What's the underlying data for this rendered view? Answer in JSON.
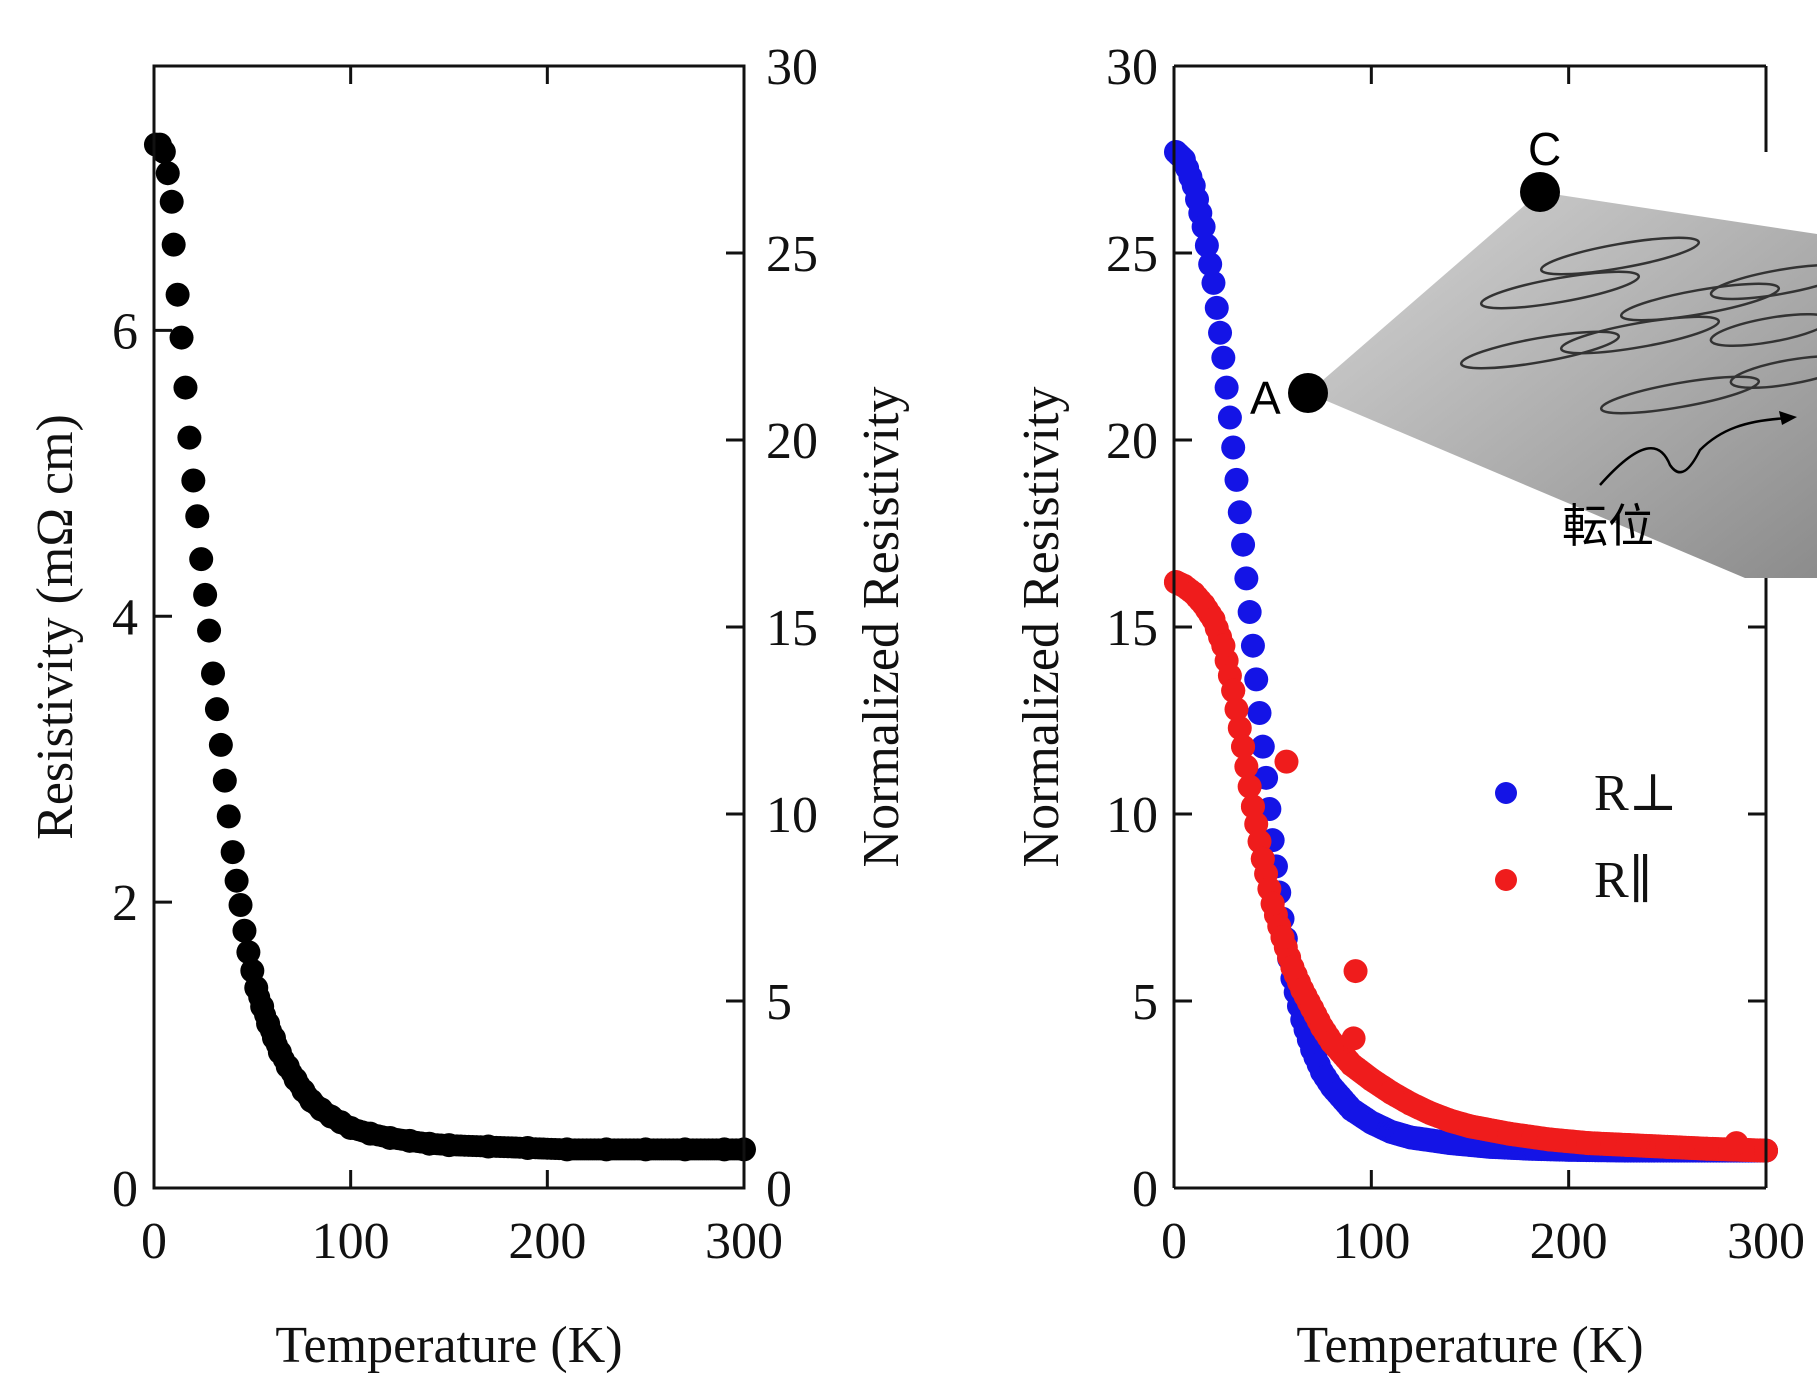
{
  "chart_data": [
    {
      "type": "scatter",
      "xlabel": "Temperature (K)",
      "ylabel": "Resistivity (mΩ cm)",
      "y2label": "Normalized Resistivity",
      "xlim": [
        0,
        300
      ],
      "ylim": [
        0,
        7.85
      ],
      "y2lim": [
        0,
        30
      ],
      "xticks": [
        "0",
        "100",
        "200",
        "300"
      ],
      "yticks": [
        "0",
        "2",
        "4",
        "6"
      ],
      "y2ticks": [
        "0",
        "5",
        "10",
        "15",
        "20",
        "25",
        "30"
      ],
      "series": [
        {
          "color": "#000000",
          "points": [
            [
              1,
              7.3
            ],
            [
              3,
              7.3
            ],
            [
              5,
              7.25
            ],
            [
              7,
              7.1
            ],
            [
              9,
              6.9
            ],
            [
              10,
              6.6
            ],
            [
              12,
              6.25
            ],
            [
              14,
              5.95
            ],
            [
              16,
              5.6
            ],
            [
              18,
              5.25
            ],
            [
              20,
              4.95
            ],
            [
              22,
              4.7
            ],
            [
              24,
              4.4
            ],
            [
              26,
              4.15
            ],
            [
              28,
              3.9
            ],
            [
              30,
              3.6
            ],
            [
              32,
              3.35
            ],
            [
              34,
              3.1
            ],
            [
              36,
              2.85
            ],
            [
              38,
              2.6
            ],
            [
              40,
              2.35
            ],
            [
              42,
              2.15
            ],
            [
              44,
              1.98
            ],
            [
              46,
              1.8
            ],
            [
              48,
              1.65
            ],
            [
              50,
              1.52
            ],
            [
              52,
              1.4
            ],
            [
              55,
              1.27
            ],
            [
              58,
              1.15
            ],
            [
              61,
              1.05
            ],
            [
              64,
              0.95
            ],
            [
              68,
              0.85
            ],
            [
              72,
              0.76
            ],
            [
              76,
              0.68
            ],
            [
              80,
              0.61
            ],
            [
              85,
              0.55
            ],
            [
              90,
              0.5
            ],
            [
              95,
              0.46
            ],
            [
              100,
              0.42
            ],
            [
              110,
              0.38
            ],
            [
              120,
              0.35
            ],
            [
              130,
              0.33
            ],
            [
              140,
              0.31
            ],
            [
              150,
              0.3
            ],
            [
              170,
              0.29
            ],
            [
              190,
              0.28
            ],
            [
              210,
              0.27
            ],
            [
              230,
              0.27
            ],
            [
              250,
              0.27
            ],
            [
              270,
              0.27
            ],
            [
              290,
              0.27
            ],
            [
              300,
              0.27
            ]
          ]
        }
      ]
    },
    {
      "type": "scatter",
      "xlabel": "Temperature (K)",
      "ylabel": "Normalized Resistivity",
      "xlim": [
        0,
        300
      ],
      "ylim": [
        0,
        30
      ],
      "xticks": [
        "0",
        "100",
        "200",
        "300"
      ],
      "yticks": [
        "0",
        "5",
        "10",
        "15",
        "20",
        "25",
        "30"
      ],
      "legend_position": "center-right",
      "series": [
        {
          "name": "R⊥",
          "color": "#1414e6",
          "points": [
            [
              1,
              27.7
            ],
            [
              5,
              27.5
            ],
            [
              10,
              26.8
            ],
            [
              15,
              25.7
            ],
            [
              20,
              24.2
            ],
            [
              25,
              22.2
            ],
            [
              30,
              19.8
            ],
            [
              35,
              17.2
            ],
            [
              40,
              14.5
            ],
            [
              45,
              11.8
            ],
            [
              50,
              9.3
            ],
            [
              55,
              7.2
            ],
            [
              60,
              5.6
            ],
            [
              65,
              4.5
            ],
            [
              70,
              3.7
            ],
            [
              75,
              3.1
            ],
            [
              80,
              2.7
            ],
            [
              90,
              2.1
            ],
            [
              100,
              1.75
            ],
            [
              110,
              1.5
            ],
            [
              120,
              1.35
            ],
            [
              140,
              1.2
            ],
            [
              160,
              1.1
            ],
            [
              180,
              1.05
            ],
            [
              200,
              1.02
            ],
            [
              230,
              1.0
            ],
            [
              260,
              1.0
            ],
            [
              300,
              1.0
            ]
          ]
        },
        {
          "name": "R∥",
          "color": "#ef1c1c",
          "points": [
            [
              1,
              16.2
            ],
            [
              5,
              16.1
            ],
            [
              10,
              15.9
            ],
            [
              15,
              15.6
            ],
            [
              20,
              15.2
            ],
            [
              25,
              14.5
            ],
            [
              30,
              13.3
            ],
            [
              35,
              11.8
            ],
            [
              40,
              10.2
            ],
            [
              45,
              8.8
            ],
            [
              50,
              7.6
            ],
            [
              55,
              6.7
            ],
            [
              57,
              11.4
            ],
            [
              60,
              5.9
            ],
            [
              65,
              5.3
            ],
            [
              70,
              4.8
            ],
            [
              75,
              4.3
            ],
            [
              80,
              3.9
            ],
            [
              90,
              3.3
            ],
            [
              92,
              5.8
            ],
            [
              91,
              4.0
            ],
            [
              100,
              2.9
            ],
            [
              110,
              2.55
            ],
            [
              120,
              2.25
            ],
            [
              130,
              2.0
            ],
            [
              140,
              1.8
            ],
            [
              150,
              1.65
            ],
            [
              170,
              1.45
            ],
            [
              190,
              1.3
            ],
            [
              210,
              1.2
            ],
            [
              230,
              1.15
            ],
            [
              250,
              1.1
            ],
            [
              270,
              1.05
            ],
            [
              285,
              1.2
            ],
            [
              300,
              1.0
            ]
          ]
        }
      ],
      "inset": {
        "corner_labels": [
          "C",
          "A"
        ],
        "annotation": "転位"
      }
    }
  ]
}
